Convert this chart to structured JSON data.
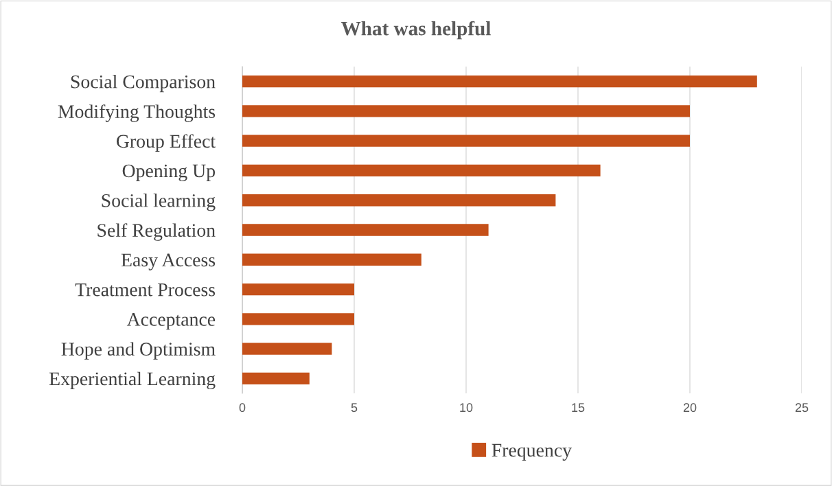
{
  "chart_data": {
    "type": "bar",
    "orientation": "horizontal",
    "title": "What was helpful",
    "categories": [
      "Social Comparison",
      "Modifying Thoughts",
      "Group Effect",
      "Opening Up",
      "Social learning",
      "Self Regulation",
      "Easy Access",
      "Treatment Process",
      "Acceptance",
      "Hope and Optimism",
      "Experiential Learning"
    ],
    "series": [
      {
        "name": "Frequency",
        "color": "#c55019",
        "values": [
          23,
          20,
          20,
          16,
          14,
          11,
          8,
          5,
          5,
          4,
          3
        ]
      }
    ],
    "xlim": [
      0,
      25
    ],
    "xticks": [
      0,
      5,
      10,
      15,
      20,
      25
    ],
    "grid": "x",
    "legend": "bottom"
  }
}
